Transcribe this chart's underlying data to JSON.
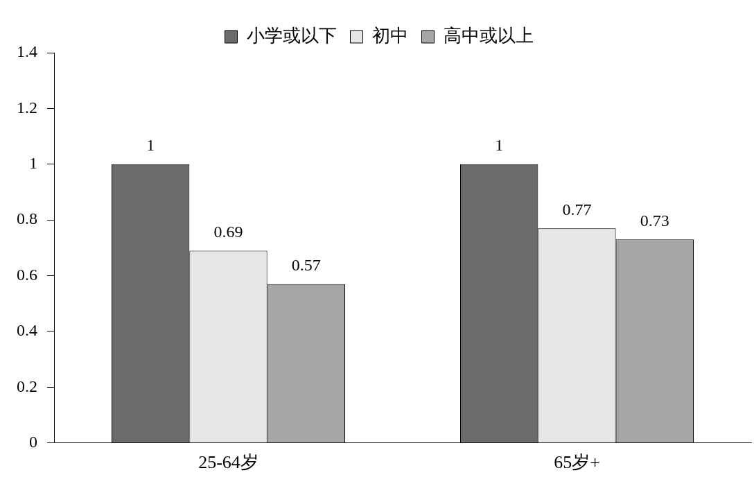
{
  "chart_data": {
    "type": "bar",
    "categories": [
      "25-64岁",
      "65岁+"
    ],
    "series": [
      {
        "name": "小学或以下",
        "color": "#6b6b6b",
        "values": [
          1,
          1
        ]
      },
      {
        "name": "初中",
        "color": "#e6e6e6",
        "values": [
          0.69,
          0.77
        ]
      },
      {
        "name": "高中或以上",
        "color": "#a6a6a6",
        "values": [
          0.57,
          0.73
        ]
      }
    ],
    "ylim": [
      0,
      1.4
    ],
    "yticks": [
      0,
      0.2,
      0.4,
      0.6,
      0.8,
      1,
      1.2,
      1.4
    ],
    "grid": false,
    "legend": "top",
    "data_labels": true
  }
}
